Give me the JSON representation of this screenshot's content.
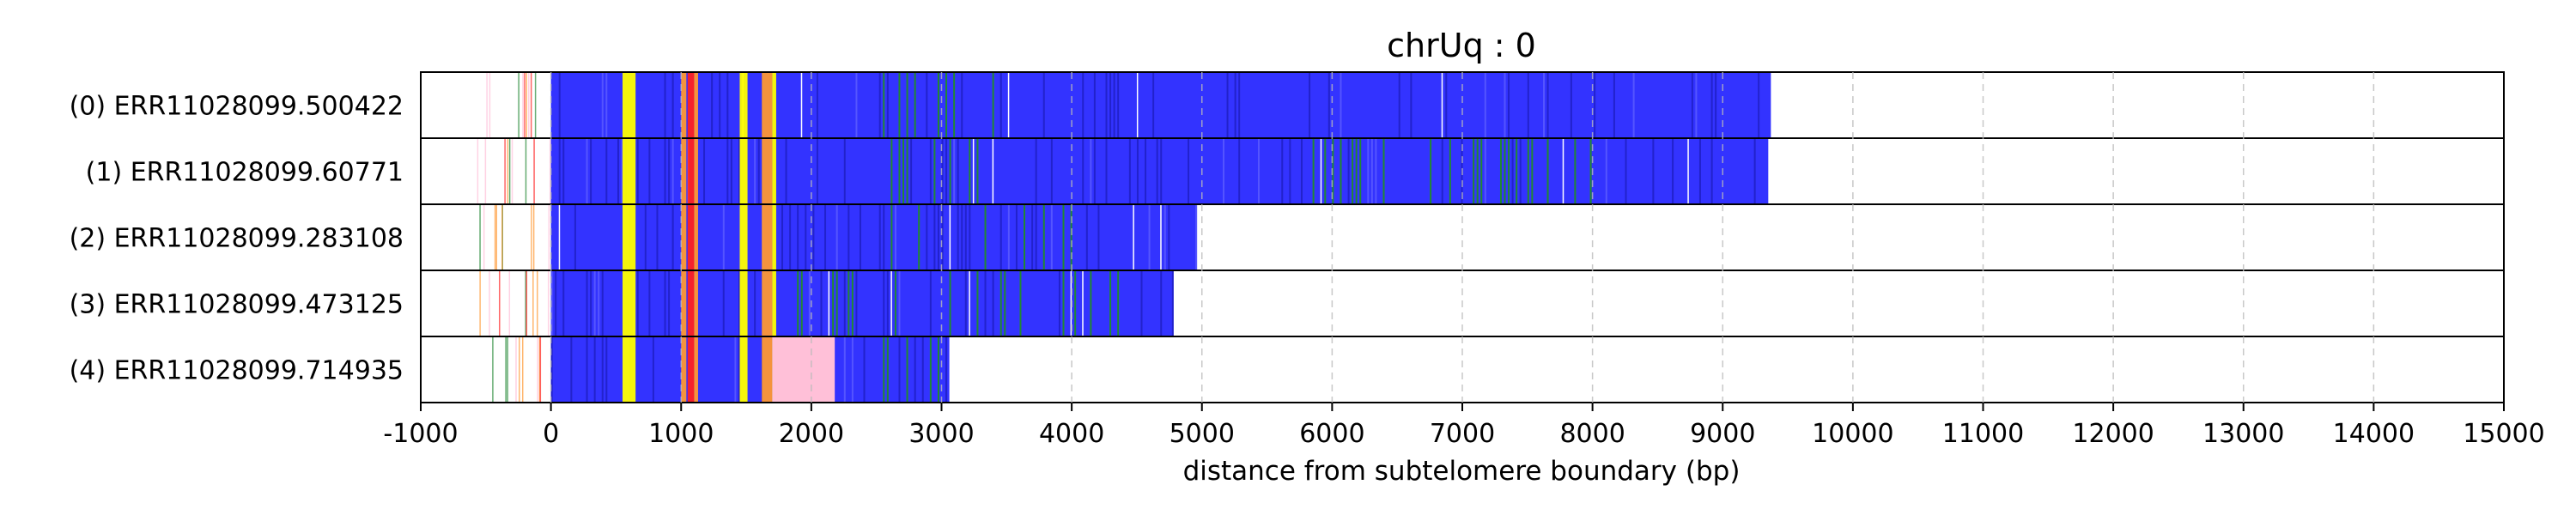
{
  "chart_data": {
    "type": "heatmap",
    "title": "chrUq : 0",
    "xlabel": "distance from subtelomere boundary (bp)",
    "ylabel": "",
    "xlim": [
      -1000,
      15000
    ],
    "xticks": [
      -1000,
      0,
      1000,
      2000,
      3000,
      4000,
      5000,
      6000,
      7000,
      8000,
      9000,
      10000,
      11000,
      12000,
      13000,
      14000,
      15000
    ],
    "xtick_labels": [
      "-1000",
      "0",
      "1000",
      "2000",
      "3000",
      "4000",
      "5000",
      "6000",
      "7000",
      "8000",
      "9000",
      "10000",
      "11000",
      "12000",
      "13000",
      "14000",
      "15000"
    ],
    "grid": "vertical dashed",
    "reads": [
      {
        "label": "(0) ERR11028099.500422",
        "start": -600,
        "end": 9370
      },
      {
        "label": "(1) ERR11028099.60771",
        "start": -600,
        "end": 9350
      },
      {
        "label": "(2) ERR11028099.283108",
        "start": -600,
        "end": 4960
      },
      {
        "label": "(3) ERR11028099.473125",
        "start": -560,
        "end": 4780
      },
      {
        "label": "(4) ERR11028099.714935",
        "start": -600,
        "end": 3060
      }
    ],
    "colors": {
      "base": "#3333ff",
      "yellow": "#ffff00",
      "red": "#ff2222",
      "orange": "#ff9933",
      "green": "#228833",
      "cyan": "#44bbcc",
      "pink": "#ffc0d8",
      "grid": "#bbbbbb"
    }
  }
}
